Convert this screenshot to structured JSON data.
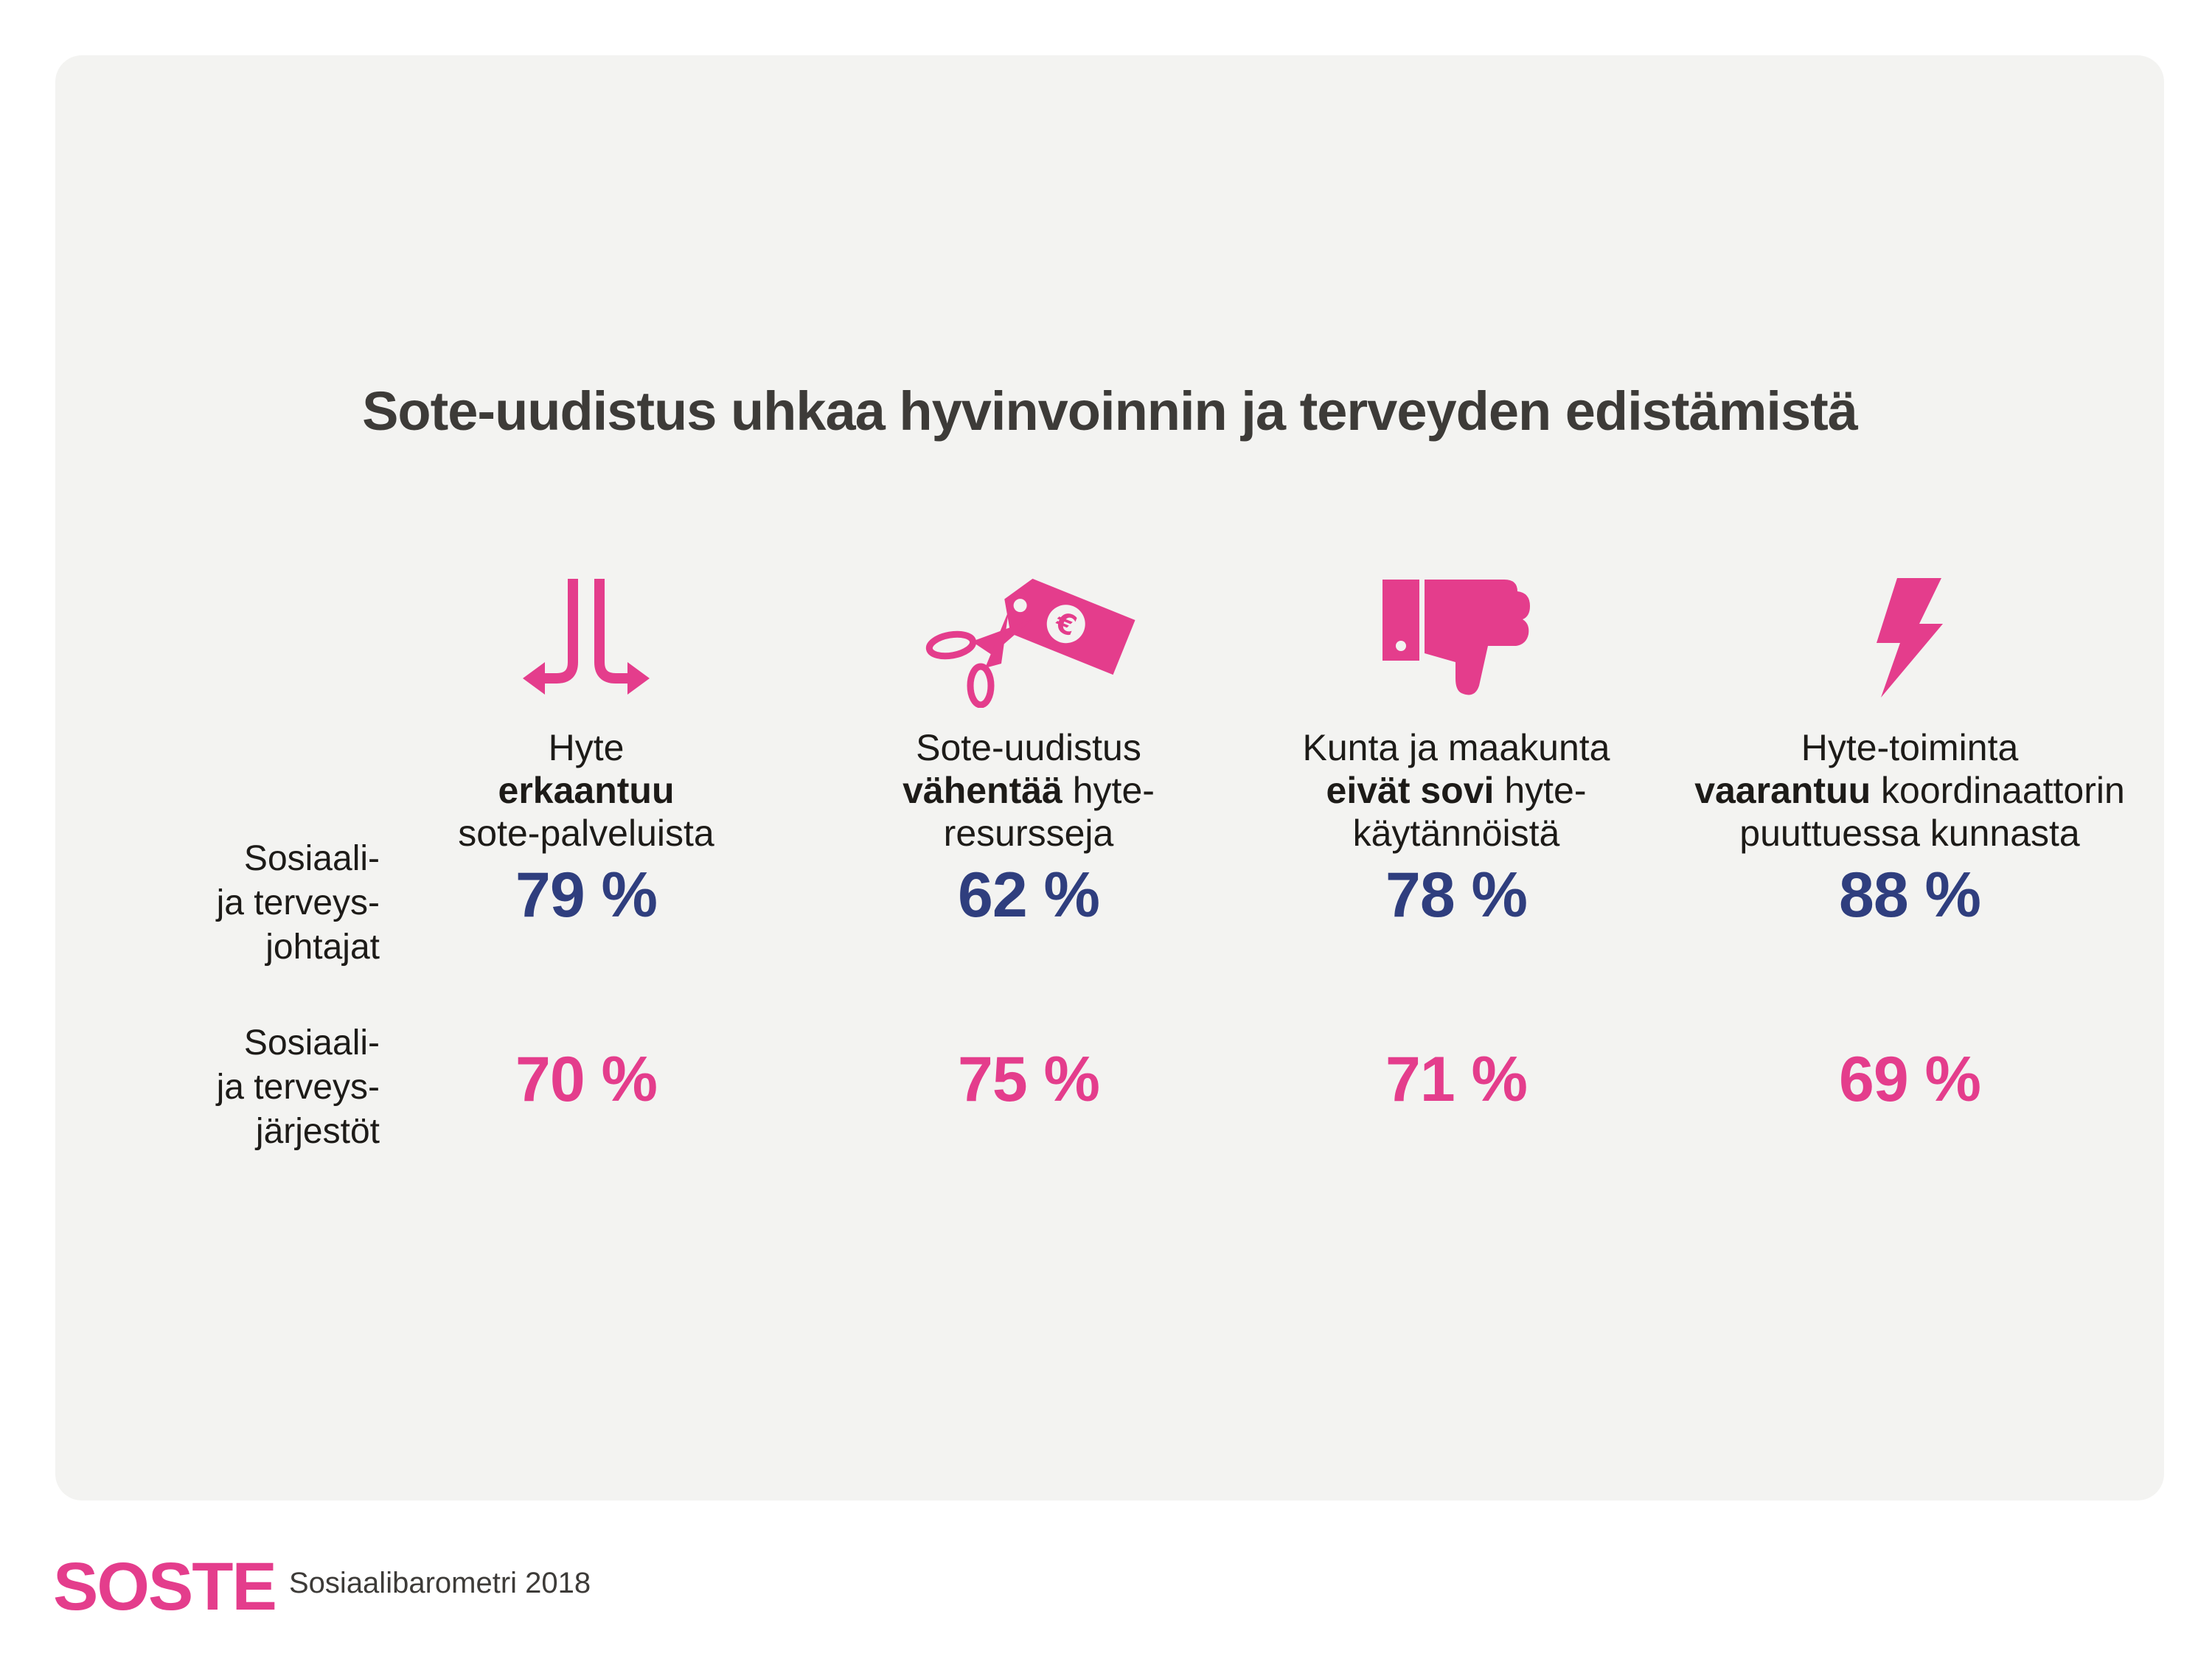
{
  "title": "Sote-uudistus uhkaa hyvinvoinnin ja terveyden edistämistä",
  "colors": {
    "accent": "#e43d8c",
    "navy": "#2f3e7e",
    "text": "#1d1b18",
    "panel": "#f3f3f1"
  },
  "columns": [
    {
      "icon": "diverging-arrows-icon",
      "line1_pre": "Hyte",
      "line1_em": "",
      "line1_post": "",
      "line2_em": "erkaantuu",
      "line2_post": "",
      "line3": "sote-palveluista"
    },
    {
      "icon": "scissors-price-tag-euro-icon",
      "line1_pre": "Sote-uudistus",
      "line1_em": "",
      "line1_post": "",
      "line2_em": "vähentää",
      "line2_post": " hyte-",
      "line3": "resursseja"
    },
    {
      "icon": "thumbs-down-icon",
      "line1_pre": "Kunta ja maakunta",
      "line1_em": "",
      "line1_post": "",
      "line2_em": "eivät sovi",
      "line2_post": " hyte-",
      "line3": "käytännöistä"
    },
    {
      "icon": "lightning-icon",
      "line1_pre": "Hyte-toiminta",
      "line1_em": "",
      "line1_post": "",
      "line2_em": "vaarantuu",
      "line2_post": " koordinaattorin",
      "line3": "puuttuessa kunnasta"
    }
  ],
  "rows": [
    {
      "label_lines": [
        "Sosiaali-",
        "ja terveys-",
        "johtajat"
      ]
    },
    {
      "label_lines": [
        "Sosiaali-",
        "ja terveys-",
        "järjestöt"
      ]
    }
  ],
  "chart_data": {
    "type": "table",
    "title": "Sote-uudistus uhkaa hyvinvoinnin ja terveyden edistämistä",
    "categories": [
      "Hyte erkaantuu sote-palveluista",
      "Sote-uudistus vähentää hyte-resursseja",
      "Kunta ja maakunta eivät sovi hyte-käytännöistä",
      "Hyte-toiminta vaarantuu koordinaattorin puuttuessa kunnasta"
    ],
    "series": [
      {
        "name": "Sosiaali- ja terveysjohtajat",
        "color": "#2f3e7e",
        "values": [
          79,
          62,
          78,
          88
        ],
        "labels": [
          "79 %",
          "62 %",
          "78 %",
          "88 %"
        ]
      },
      {
        "name": "Sosiaali- ja terveysjärjestöt",
        "color": "#e43d8c",
        "values": [
          70,
          75,
          71,
          69
        ],
        "labels": [
          "70 %",
          "75 %",
          "71 %",
          "69 %"
        ]
      }
    ],
    "unit": "%"
  },
  "footer": {
    "logo": "SOSTE",
    "source": "Sosiaalibarometri 2018"
  }
}
